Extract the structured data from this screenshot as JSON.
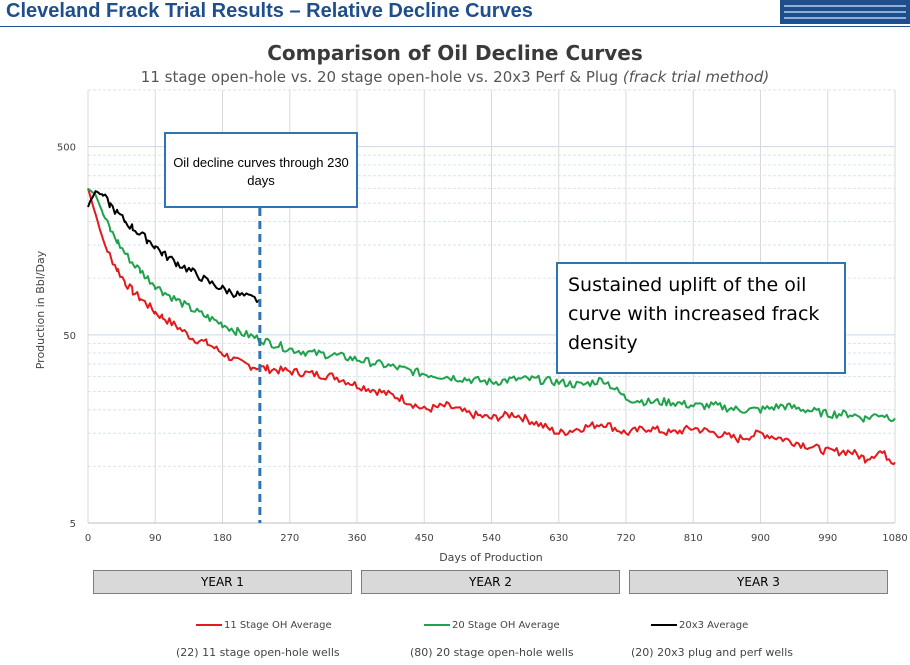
{
  "header": {
    "title": "Cleveland Frack Trial Results – Relative Decline Curves"
  },
  "annotations": {
    "box1": "Oil decline curves through 230 days",
    "box2": "Sustained uplift of the oil curve with increased frack density"
  },
  "years": [
    "YEAR 1",
    "YEAR 2",
    "YEAR 3"
  ],
  "wells": [
    "(22) 11 stage open-hole wells",
    "(80) 20 stage open-hole wells",
    "(20) 20x3 plug and perf wells"
  ],
  "chart_data": {
    "type": "line",
    "title": "Comparison of Oil Decline Curves",
    "subtitle": "11 stage open-hole vs. 20 stage open-hole vs. 20x3 Perf & Plug",
    "subtitle_italic": "(frack trial method)",
    "xlabel": "Days of Production",
    "ylabel": "Production in Bbl/Day",
    "xlim": [
      0,
      1080
    ],
    "xticks": [
      0,
      90,
      180,
      270,
      360,
      450,
      540,
      630,
      720,
      810,
      900,
      990,
      1080
    ],
    "ylim": [
      5,
      1000
    ],
    "yscale": "log",
    "yticks": [
      5,
      50,
      500
    ],
    "grid": true,
    "legend_position": "bottom",
    "vline": {
      "x": 230,
      "style": "dashed",
      "color": "#2e75b6"
    },
    "series": [
      {
        "name": "11 Stage OH Average",
        "color": "#e31a1c",
        "x": [
          0,
          10,
          20,
          30,
          40,
          50,
          60,
          70,
          80,
          90,
          100,
          120,
          140,
          160,
          180,
          200,
          220,
          240,
          270,
          300,
          330,
          360,
          390,
          420,
          450,
          480,
          510,
          540,
          570,
          600,
          630,
          660,
          690,
          720,
          750,
          780,
          810,
          840,
          870,
          900,
          930,
          960,
          990,
          1020,
          1040,
          1060,
          1080
        ],
        "y": [
          300,
          220,
          160,
          130,
          110,
          95,
          85,
          78,
          72,
          66,
          62,
          55,
          48,
          45,
          40,
          36,
          34,
          33,
          32,
          31,
          30,
          27,
          25,
          23,
          20,
          21,
          19,
          18,
          19,
          17,
          15,
          16,
          17,
          15,
          16,
          15,
          16,
          15,
          14,
          15,
          14,
          13,
          12,
          12,
          11,
          12,
          10.5
        ]
      },
      {
        "name": "20 Stage OH Average",
        "color": "#1fa34a",
        "x": [
          0,
          10,
          20,
          30,
          40,
          50,
          60,
          70,
          80,
          90,
          100,
          120,
          140,
          160,
          180,
          200,
          220,
          240,
          270,
          300,
          330,
          360,
          390,
          420,
          450,
          480,
          510,
          540,
          570,
          600,
          630,
          660,
          690,
          720,
          750,
          780,
          810,
          840,
          870,
          900,
          930,
          960,
          990,
          1020,
          1040,
          1060,
          1080
        ],
        "y": [
          300,
          280,
          220,
          180,
          155,
          135,
          120,
          110,
          100,
          92,
          85,
          76,
          68,
          62,
          57,
          52,
          49,
          46,
          42,
          40,
          39,
          37,
          35,
          33,
          31,
          30,
          29,
          28,
          29,
          29,
          28,
          27,
          29,
          23,
          22,
          22,
          21,
          21,
          20,
          20,
          21,
          20,
          19,
          19,
          18,
          19,
          18
        ]
      },
      {
        "name": "20x3 Average",
        "color": "#000000",
        "x": [
          0,
          10,
          20,
          30,
          40,
          50,
          60,
          70,
          80,
          90,
          100,
          120,
          140,
          160,
          180,
          200,
          220,
          230
        ],
        "y": [
          240,
          290,
          275,
          245,
          220,
          200,
          185,
          172,
          160,
          148,
          135,
          120,
          108,
          96,
          88,
          82,
          78,
          76
        ]
      }
    ]
  }
}
